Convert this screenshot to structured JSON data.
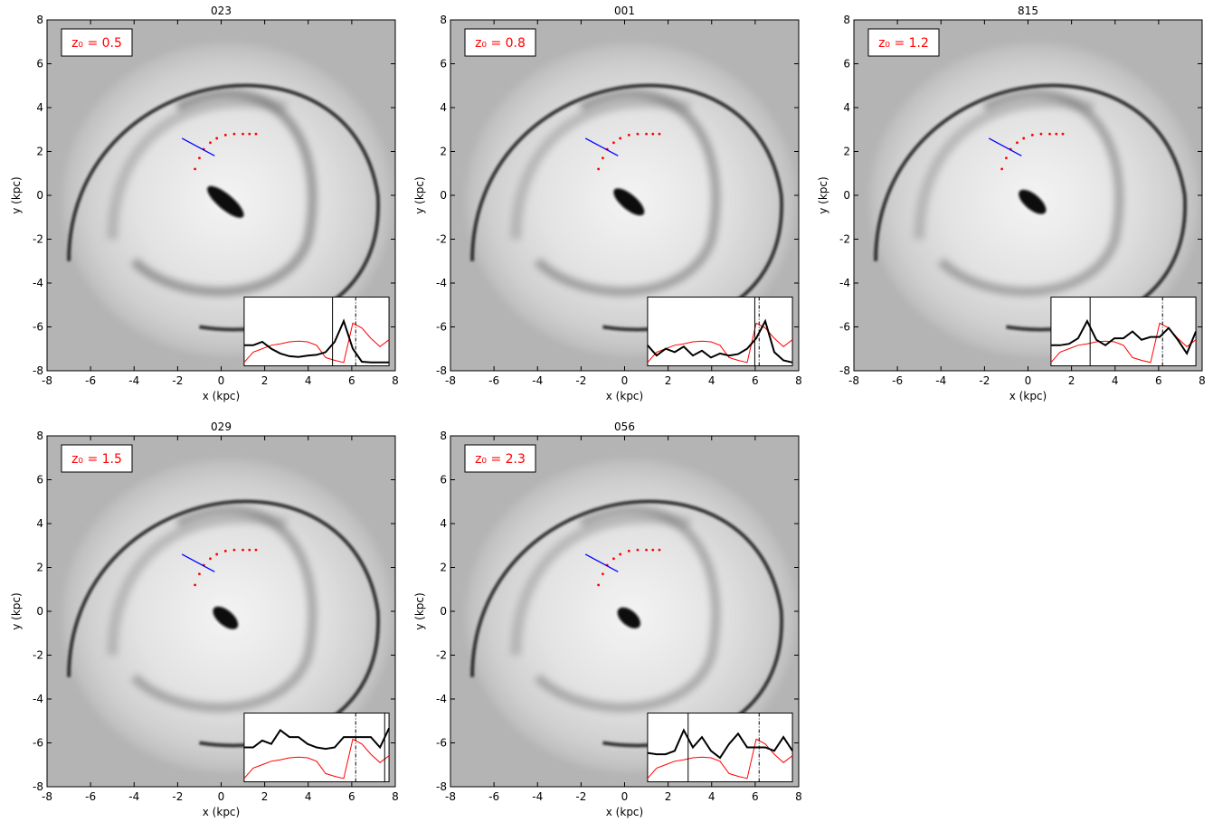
{
  "chart_data": [
    {
      "type": "density-map",
      "title": "023",
      "annotation": "z₀ = 0.5",
      "xlabel": "x (kpc)",
      "ylabel": "y (kpc)",
      "xlim": [
        -8,
        8
      ],
      "ylim": [
        -8,
        8
      ],
      "xticks": [
        -8,
        -6,
        -4,
        -2,
        0,
        2,
        4,
        6,
        8
      ],
      "yticks": [
        -8,
        -6,
        -4,
        -2,
        0,
        2,
        4,
        6,
        8
      ],
      "red_path": {
        "color": "#ff0000",
        "x": [
          -1.2,
          -1.0,
          -0.8,
          -0.5,
          -0.2,
          0.2,
          0.6,
          1.0,
          1.3,
          1.6
        ],
        "y": [
          1.2,
          1.7,
          2.1,
          2.4,
          2.6,
          2.75,
          2.8,
          2.8,
          2.8,
          2.8
        ]
      },
      "blue_line": {
        "color": "#0000ff",
        "x": [
          -1.8,
          -0.3
        ],
        "y": [
          2.6,
          1.8
        ]
      },
      "inset": {
        "xlim": [
          0,
          1
        ],
        "ylim": [
          0,
          1
        ],
        "series": [
          {
            "color": "#ff0000",
            "values": [
              0.05,
              0.2,
              0.25,
              0.3,
              0.32,
              0.35,
              0.36,
              0.35,
              0.3,
              0.12,
              0.08,
              0.05,
              0.62,
              0.55,
              0.4,
              0.28,
              0.38
            ]
          },
          {
            "color": "#000000",
            "values": [
              0.3,
              0.3,
              0.35,
              0.25,
              0.18,
              0.14,
              0.13,
              0.15,
              0.16,
              0.2,
              0.35,
              0.65,
              0.25,
              0.06,
              0.05,
              0.05,
              0.05
            ]
          }
        ],
        "markers": [
          {
            "value": 0.61,
            "style": "solid"
          },
          {
            "value": 0.77,
            "style": "dashdot"
          }
        ]
      }
    },
    {
      "type": "density-map",
      "title": "001",
      "annotation": "z₀ = 0.8",
      "xlabel": "x (kpc)",
      "ylabel": "y (kpc)",
      "xlim": [
        -8,
        8
      ],
      "ylim": [
        -8,
        8
      ],
      "xticks": [
        -8,
        -6,
        -4,
        -2,
        0,
        2,
        4,
        6,
        8
      ],
      "yticks": [
        -8,
        -6,
        -4,
        -2,
        0,
        2,
        4,
        6,
        8
      ],
      "red_path": {
        "color": "#ff0000",
        "x": [
          -1.2,
          -1.0,
          -0.8,
          -0.5,
          -0.2,
          0.2,
          0.6,
          1.0,
          1.3,
          1.6
        ],
        "y": [
          1.2,
          1.7,
          2.1,
          2.4,
          2.6,
          2.75,
          2.8,
          2.8,
          2.8,
          2.8
        ]
      },
      "blue_line": {
        "color": "#0000ff",
        "x": [
          -1.8,
          -0.3
        ],
        "y": [
          2.6,
          1.8
        ]
      },
      "inset": {
        "xlim": [
          0,
          1
        ],
        "ylim": [
          0,
          1
        ],
        "series": [
          {
            "color": "#ff0000",
            "values": [
              0.05,
              0.2,
              0.25,
              0.3,
              0.32,
              0.35,
              0.36,
              0.35,
              0.3,
              0.12,
              0.08,
              0.05,
              0.62,
              0.55,
              0.4,
              0.28,
              0.38
            ]
          },
          {
            "color": "#000000",
            "values": [
              0.3,
              0.15,
              0.25,
              0.2,
              0.28,
              0.15,
              0.22,
              0.12,
              0.18,
              0.15,
              0.17,
              0.25,
              0.4,
              0.65,
              0.2,
              0.08,
              0.05
            ]
          }
        ],
        "markers": [
          {
            "value": 0.74,
            "style": "solid"
          },
          {
            "value": 0.77,
            "style": "dashdot"
          }
        ]
      }
    },
    {
      "type": "density-map",
      "title": "815",
      "annotation": "z₀ = 1.2",
      "xlabel": "x (kpc)",
      "ylabel": "y (kpc)",
      "xlim": [
        -8,
        8
      ],
      "ylim": [
        -8,
        8
      ],
      "xticks": [
        -8,
        -6,
        -4,
        -2,
        0,
        2,
        4,
        6,
        8
      ],
      "yticks": [
        -8,
        -6,
        -4,
        -2,
        0,
        2,
        4,
        6,
        8
      ],
      "red_path": {
        "color": "#ff0000",
        "x": [
          -1.2,
          -1.0,
          -0.8,
          -0.5,
          -0.2,
          0.2,
          0.6,
          1.0,
          1.3,
          1.6
        ],
        "y": [
          1.2,
          1.7,
          2.1,
          2.4,
          2.6,
          2.75,
          2.8,
          2.8,
          2.8,
          2.8
        ]
      },
      "blue_line": {
        "color": "#0000ff",
        "x": [
          -1.8,
          -0.3
        ],
        "y": [
          2.6,
          1.8
        ]
      },
      "inset": {
        "xlim": [
          0,
          1
        ],
        "ylim": [
          0,
          1
        ],
        "series": [
          {
            "color": "#ff0000",
            "values": [
              0.05,
              0.2,
              0.25,
              0.3,
              0.32,
              0.35,
              0.36,
              0.35,
              0.3,
              0.12,
              0.08,
              0.05,
              0.62,
              0.55,
              0.4,
              0.28,
              0.38
            ]
          },
          {
            "color": "#000000",
            "values": [
              0.3,
              0.3,
              0.32,
              0.4,
              0.65,
              0.38,
              0.3,
              0.4,
              0.4,
              0.5,
              0.38,
              0.42,
              0.42,
              0.55,
              0.38,
              0.18,
              0.5
            ]
          }
        ],
        "markers": [
          {
            "value": 0.27,
            "style": "solid"
          },
          {
            "value": 0.77,
            "style": "dashdot"
          }
        ]
      }
    },
    {
      "type": "density-map",
      "title": "029",
      "annotation": "z₀ = 1.5",
      "xlabel": "x (kpc)",
      "ylabel": "y (kpc)",
      "xlim": [
        -8,
        8
      ],
      "ylim": [
        -8,
        8
      ],
      "xticks": [
        -8,
        -6,
        -4,
        -2,
        0,
        2,
        4,
        6,
        8
      ],
      "yticks": [
        -8,
        -6,
        -4,
        -2,
        0,
        2,
        4,
        6,
        8
      ],
      "red_path": {
        "color": "#ff0000",
        "x": [
          -1.2,
          -1.0,
          -0.8,
          -0.5,
          -0.2,
          0.2,
          0.6,
          1.0,
          1.3,
          1.6
        ],
        "y": [
          1.2,
          1.7,
          2.1,
          2.4,
          2.6,
          2.75,
          2.8,
          2.8,
          2.8,
          2.8
        ]
      },
      "blue_line": {
        "color": "#0000ff",
        "x": [
          -1.8,
          -0.3
        ],
        "y": [
          2.6,
          1.8
        ]
      },
      "inset": {
        "xlim": [
          0,
          1
        ],
        "ylim": [
          0,
          1
        ],
        "series": [
          {
            "color": "#ff0000",
            "values": [
              0.05,
              0.2,
              0.25,
              0.3,
              0.32,
              0.35,
              0.36,
              0.35,
              0.3,
              0.12,
              0.08,
              0.05,
              0.62,
              0.55,
              0.4,
              0.28,
              0.38
            ]
          },
          {
            "color": "#000000",
            "values": [
              0.5,
              0.5,
              0.6,
              0.55,
              0.75,
              0.65,
              0.65,
              0.55,
              0.5,
              0.48,
              0.5,
              0.65,
              0.65,
              0.65,
              0.65,
              0.5,
              0.78
            ]
          }
        ],
        "markers": [
          {
            "value": 0.97,
            "style": "solid"
          },
          {
            "value": 0.77,
            "style": "dashdot"
          }
        ]
      }
    },
    {
      "type": "density-map",
      "title": "056",
      "annotation": "z₀ = 2.3",
      "xlabel": "x (kpc)",
      "ylabel": "y (kpc)",
      "xlim": [
        -8,
        8
      ],
      "ylim": [
        -8,
        8
      ],
      "xticks": [
        -8,
        -6,
        -4,
        -2,
        0,
        2,
        4,
        6,
        8
      ],
      "yticks": [
        -8,
        -6,
        -4,
        -2,
        0,
        2,
        4,
        6,
        8
      ],
      "red_path": {
        "color": "#ff0000",
        "x": [
          -1.2,
          -1.0,
          -0.8,
          -0.5,
          -0.2,
          0.2,
          0.6,
          1.0,
          1.3,
          1.6
        ],
        "y": [
          1.2,
          1.7,
          2.1,
          2.4,
          2.6,
          2.75,
          2.8,
          2.8,
          2.8,
          2.8
        ]
      },
      "blue_line": {
        "color": "#0000ff",
        "x": [
          -1.8,
          -0.3
        ],
        "y": [
          2.6,
          1.8
        ]
      },
      "inset": {
        "xlim": [
          0,
          1
        ],
        "ylim": [
          0,
          1
        ],
        "series": [
          {
            "color": "#ff0000",
            "values": [
              0.05,
              0.2,
              0.25,
              0.3,
              0.32,
              0.35,
              0.36,
              0.35,
              0.3,
              0.12,
              0.08,
              0.05,
              0.62,
              0.55,
              0.4,
              0.28,
              0.38
            ]
          },
          {
            "color": "#000000",
            "values": [
              0.42,
              0.4,
              0.4,
              0.45,
              0.75,
              0.5,
              0.65,
              0.45,
              0.35,
              0.55,
              0.7,
              0.5,
              0.5,
              0.5,
              0.45,
              0.65,
              0.45
            ]
          }
        ],
        "markers": [
          {
            "value": 0.28,
            "style": "solid"
          },
          {
            "value": 0.77,
            "style": "dashdot"
          }
        ]
      }
    }
  ]
}
